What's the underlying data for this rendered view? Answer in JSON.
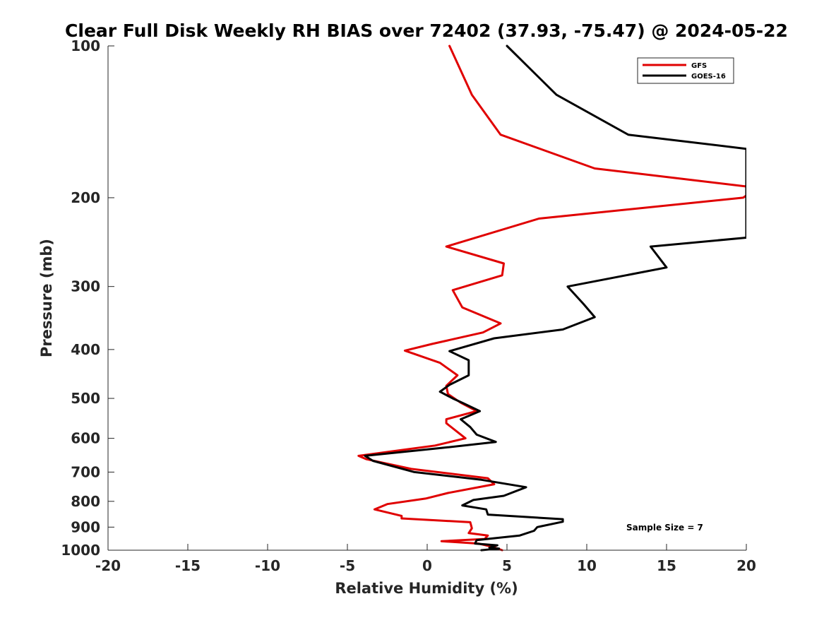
{
  "chart_data": {
    "type": "line",
    "title": "Clear Full Disk Weekly RH BIAS over 72402 (37.93, -75.47) @ 2024-05-22",
    "xlabel": "Relative Humidity (%)",
    "ylabel": "Pressure (mb)",
    "xlim": [
      -20,
      20
    ],
    "ylim": [
      100,
      1000
    ],
    "yscale": "log",
    "y_reversed": true,
    "xticks": [
      -20,
      -15,
      -10,
      -5,
      0,
      5,
      10,
      15,
      20
    ],
    "xtick_labels": [
      "-20",
      "-15",
      "-10",
      "-5",
      "0",
      "5",
      "10",
      "15",
      "20"
    ],
    "yticks": [
      100,
      200,
      300,
      400,
      500,
      600,
      700,
      800,
      900,
      1000
    ],
    "ytick_labels": [
      "100",
      "200",
      "300",
      "400",
      "500",
      "600",
      "700",
      "800",
      "900",
      "1000"
    ],
    "grid": false,
    "legend_position": "top-right",
    "series": [
      {
        "name": "GFS",
        "color": "#e00000",
        "points": [
          [
            1.4,
            100
          ],
          [
            2.8,
            125
          ],
          [
            4.6,
            150
          ],
          [
            10.5,
            175
          ],
          [
            20,
            190
          ],
          [
            20,
            198
          ],
          [
            19.8,
            200
          ],
          [
            7,
            220
          ],
          [
            1.2,
            250
          ],
          [
            4.8,
            270
          ],
          [
            4.7,
            285
          ],
          [
            1.6,
            305
          ],
          [
            2.2,
            330
          ],
          [
            4.6,
            355
          ],
          [
            3.5,
            370
          ],
          [
            0.3,
            390
          ],
          [
            -1.4,
            402
          ],
          [
            0.8,
            425
          ],
          [
            1.9,
            450
          ],
          [
            1.2,
            472
          ],
          [
            1.3,
            490
          ],
          [
            2.1,
            510
          ],
          [
            3.1,
            530
          ],
          [
            1.2,
            550
          ],
          [
            1.2,
            560
          ],
          [
            2.4,
            600
          ],
          [
            0.5,
            620
          ],
          [
            -4.3,
            650
          ],
          [
            -3.8,
            660
          ],
          [
            -1.0,
            690
          ],
          [
            3.8,
            720
          ],
          [
            4.2,
            740
          ],
          [
            1.3,
            770
          ],
          [
            -0.1,
            790
          ],
          [
            -2.5,
            810
          ],
          [
            -3.3,
            830
          ],
          [
            -1.6,
            855
          ],
          [
            -1.6,
            865
          ],
          [
            2.7,
            880
          ],
          [
            2.8,
            905
          ],
          [
            2.6,
            925
          ],
          [
            3.8,
            935
          ],
          [
            3.6,
            950
          ],
          [
            0.9,
            960
          ],
          [
            3.2,
            970
          ],
          [
            4.1,
            985
          ],
          [
            4.7,
            1000
          ]
        ]
      },
      {
        "name": "GOES-16",
        "color": "#000000",
        "points": [
          [
            5,
            100
          ],
          [
            8.1,
            125
          ],
          [
            12.6,
            150
          ],
          [
            20,
            160
          ],
          [
            20,
            240
          ],
          [
            14,
            250
          ],
          [
            15,
            275
          ],
          [
            8.8,
            300
          ],
          [
            9.8,
            325
          ],
          [
            10.5,
            345
          ],
          [
            8.5,
            365
          ],
          [
            4.2,
            380
          ],
          [
            1.4,
            403
          ],
          [
            2.6,
            420
          ],
          [
            2.6,
            450
          ],
          [
            1.4,
            470
          ],
          [
            0.8,
            485
          ],
          [
            1.6,
            500
          ],
          [
            2.2,
            510
          ],
          [
            3.3,
            530
          ],
          [
            2.1,
            550
          ],
          [
            2.7,
            570
          ],
          [
            3.1,
            590
          ],
          [
            4.3,
            610
          ],
          [
            1.3,
            625
          ],
          [
            -3.9,
            650
          ],
          [
            -3.4,
            665
          ],
          [
            -0.8,
            700
          ],
          [
            3.4,
            725
          ],
          [
            6.2,
            750
          ],
          [
            4.8,
            780
          ],
          [
            2.9,
            795
          ],
          [
            2.2,
            815
          ],
          [
            3.7,
            830
          ],
          [
            3.8,
            850
          ],
          [
            8.5,
            868
          ],
          [
            8.5,
            878
          ],
          [
            6.9,
            900
          ],
          [
            6.7,
            915
          ],
          [
            5.8,
            935
          ],
          [
            3.1,
            955
          ],
          [
            3.0,
            970
          ],
          [
            4.4,
            978
          ],
          [
            3.9,
            988
          ],
          [
            4.5,
            993
          ],
          [
            3.4,
            1000
          ]
        ]
      }
    ],
    "annotations": [
      "Sample Size = 7"
    ]
  }
}
